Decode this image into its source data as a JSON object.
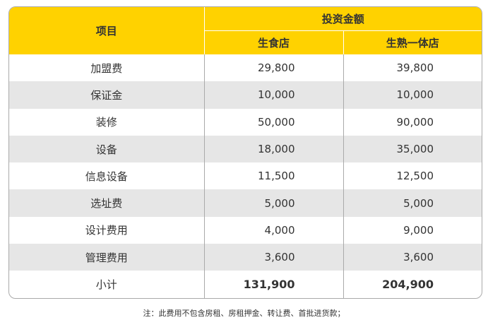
{
  "table": {
    "header": {
      "item": "项目",
      "group": "投资金额",
      "col_a": "生食店",
      "col_b": "生熟一体店"
    },
    "rows": [
      {
        "label": "加盟费",
        "a": "29,800",
        "b": "39,800"
      },
      {
        "label": "保证金",
        "a": "10,000",
        "b": "10,000"
      },
      {
        "label": "装修",
        "a": "50,000",
        "b": "90,000"
      },
      {
        "label": "设备",
        "a": "18,000",
        "b": "35,000"
      },
      {
        "label": "信息设备",
        "a": "11,500",
        "b": "12,500"
      },
      {
        "label": "选址费",
        "a": "5,000",
        "b": "5,000"
      },
      {
        "label": "设计费用",
        "a": "4,000",
        "b": "9,000"
      },
      {
        "label": "管理费用",
        "a": "3,600",
        "b": "3,600"
      }
    ],
    "total": {
      "label": "小计",
      "a": "131,900",
      "b": "204,900"
    }
  },
  "note": "注：此费用不包含房租、房租押金、转让费、首批进货款；",
  "colors": {
    "header": "#FFD200",
    "alt_row": "#e6e6e6",
    "border": "#aaaaaa"
  }
}
